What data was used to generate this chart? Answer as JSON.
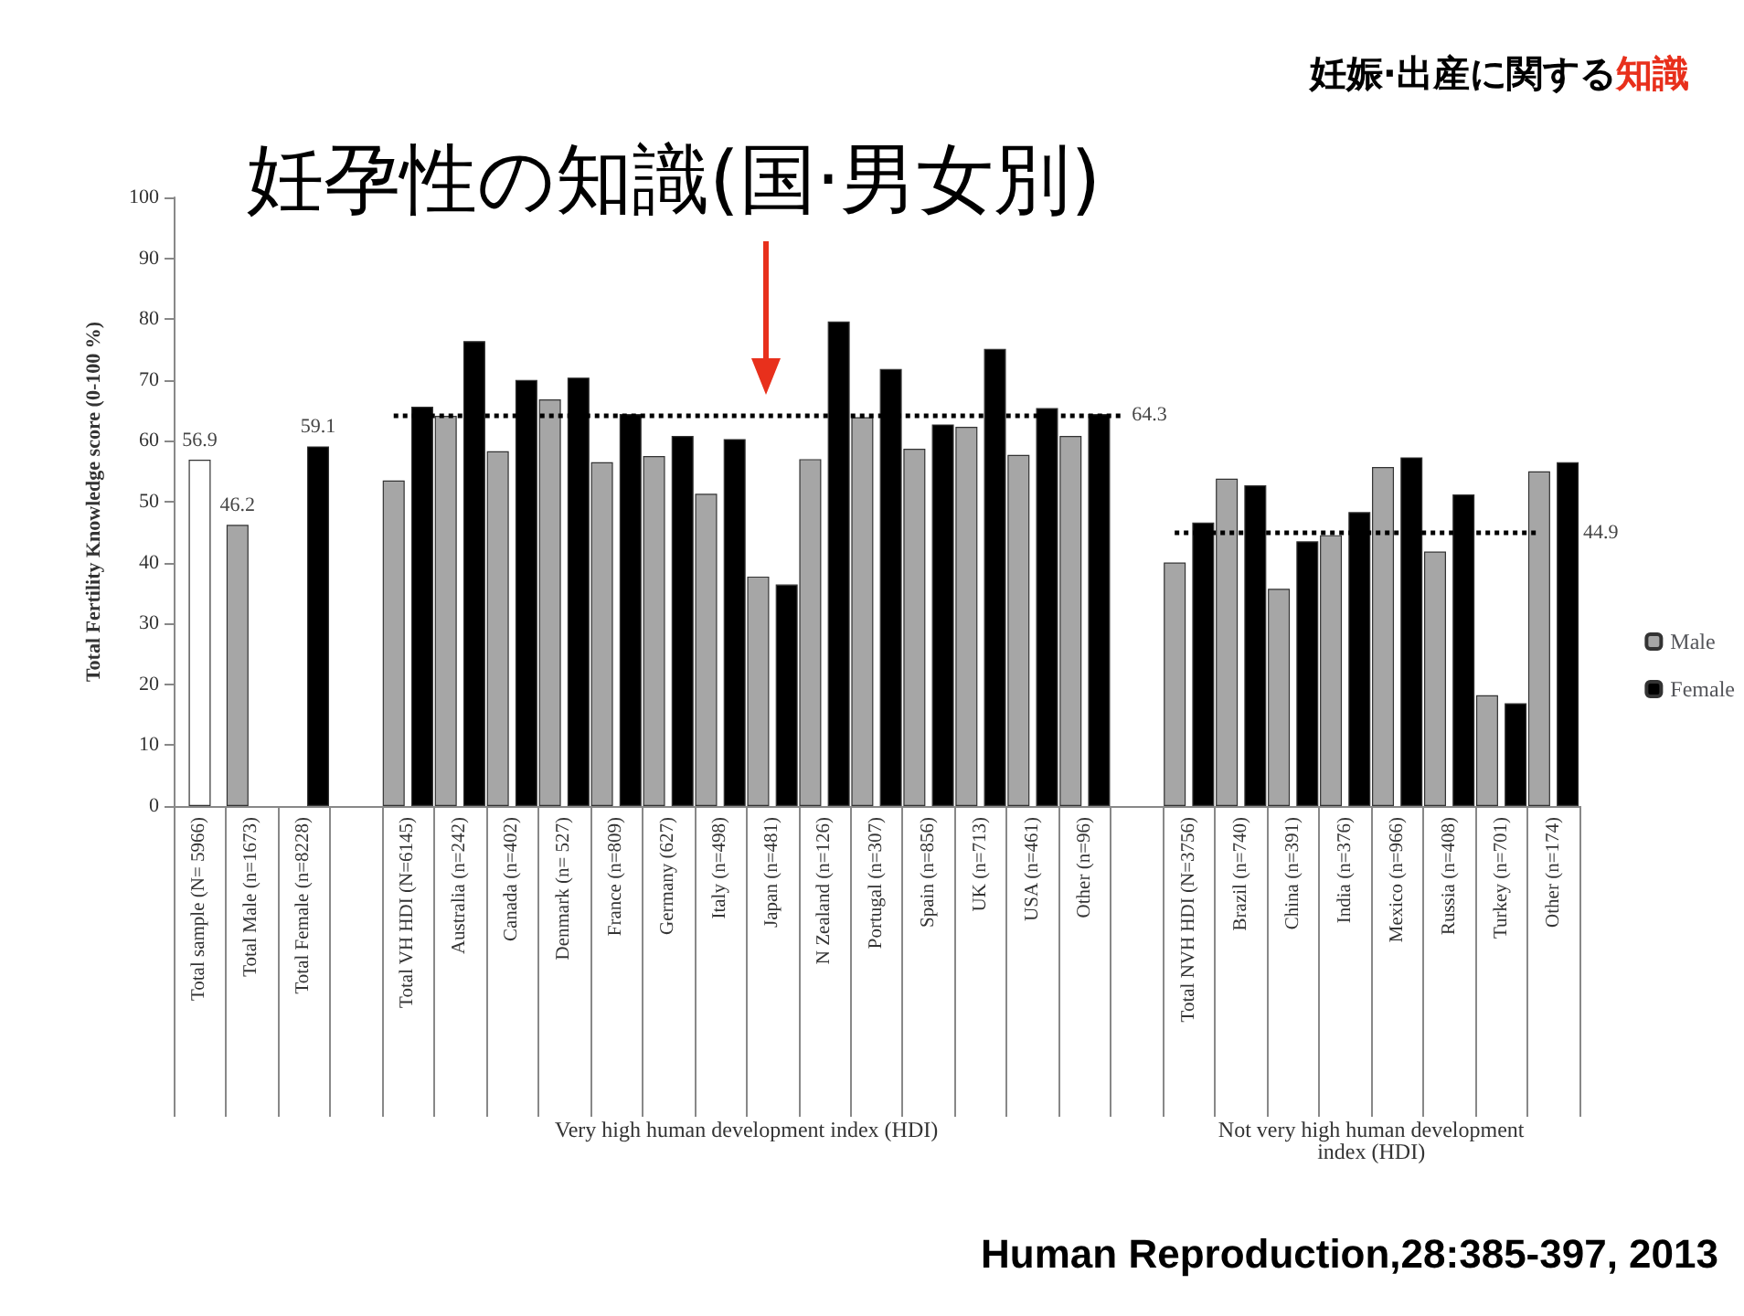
{
  "chart_data": {
    "type": "bar",
    "title": "妊孕性の知識(国·男女別)",
    "subtitle": "妊娠·出産に関する知識",
    "ylabel": "Total Fertility Knowledge score (0-100 %)",
    "categories": [
      "Total sample (N= 5966)",
      "Total Male (n=1673)",
      "Total Female (n=8228)",
      null,
      "Total VH HDI (N=6145)",
      "Australia (n=242)",
      "Canada (n=402)",
      "Denmark (n= 527)",
      "France (n=809)",
      "Germany (627)",
      "Italy (n=498)",
      "Japan (n=481)",
      "N Zealand (n=126)",
      "Portugal (n=307)",
      "Spain (n=856)",
      "UK (n=713)",
      "USA (n=461)",
      "Other (n=96)",
      null,
      "Total NVH HDI (N=3756)",
      "Brazil (n=740)",
      "China (n=391)",
      "India (n=376)",
      "Mexico (n=966)",
      "Russia (n=408)",
      "Turkey (n=701)",
      "Other (n=174)"
    ],
    "series": [
      {
        "color": "#ffffff",
        "values": [
          56.9,
          null,
          null,
          null,
          null,
          null,
          null,
          null,
          null,
          null,
          null,
          null,
          null,
          null,
          null,
          null,
          null,
          null,
          null,
          null,
          null,
          null,
          null,
          null,
          null,
          null,
          null
        ],
        "value_labels": [
          "56.9",
          null,
          null,
          null,
          null,
          null,
          null,
          null,
          null,
          null,
          null,
          null,
          null,
          null,
          null,
          null,
          null,
          null,
          null,
          null,
          null,
          null,
          null,
          null,
          null,
          null,
          null
        ]
      },
      {
        "name": "Male",
        "color": "#a6a6a6",
        "values": [
          null,
          46.2,
          null,
          null,
          53.5,
          64.1,
          58.3,
          66.8,
          56.5,
          57.5,
          51.3,
          37.7,
          57.0,
          63.9,
          58.7,
          62.3,
          57.7,
          60.8,
          null,
          40.0,
          53.8,
          35.7,
          44.5,
          55.7,
          41.8,
          18.2,
          55.0
        ],
        "value_labels": [
          null,
          "46.2",
          null,
          null,
          null,
          null,
          null,
          null,
          null,
          null,
          null,
          null,
          null,
          null,
          null,
          null,
          null,
          null,
          null,
          null,
          null,
          null,
          null,
          null,
          null,
          null,
          null
        ]
      },
      {
        "name": "Female",
        "color": "#000000",
        "values": [
          null,
          null,
          59.1,
          null,
          65.6,
          76.4,
          70.0,
          70.4,
          64.4,
          60.8,
          60.3,
          36.4,
          79.6,
          71.8,
          62.7,
          75.1,
          65.4,
          64.4,
          null,
          46.6,
          52.7,
          43.5,
          48.3,
          57.3,
          51.2,
          16.9,
          56.5
        ],
        "value_labels": [
          null,
          null,
          "59.1",
          null,
          null,
          null,
          null,
          null,
          null,
          null,
          null,
          null,
          null,
          null,
          null,
          null,
          null,
          null,
          null,
          null,
          null,
          null,
          null,
          null,
          null,
          null,
          null
        ]
      }
    ],
    "ylim": [
      0,
      100
    ],
    "yticks": [
      0,
      10,
      20,
      30,
      40,
      50,
      60,
      70,
      80,
      90,
      100
    ],
    "grid": false,
    "legend": "right",
    "ref_lines": [
      {
        "axis": "y",
        "value": 64.3,
        "label": "64.3",
        "color": "#000000",
        "line_style": "dotted"
      },
      {
        "axis": "y",
        "value": 44.9,
        "label": "44.9",
        "color": "#000000",
        "line_style": "dotted"
      }
    ],
    "annotations": [
      "Very high human development index (HDI)",
      "Not very high human development\nindex (HDI)",
      "Human Reproduction,28:385-397, 2013"
    ]
  }
}
